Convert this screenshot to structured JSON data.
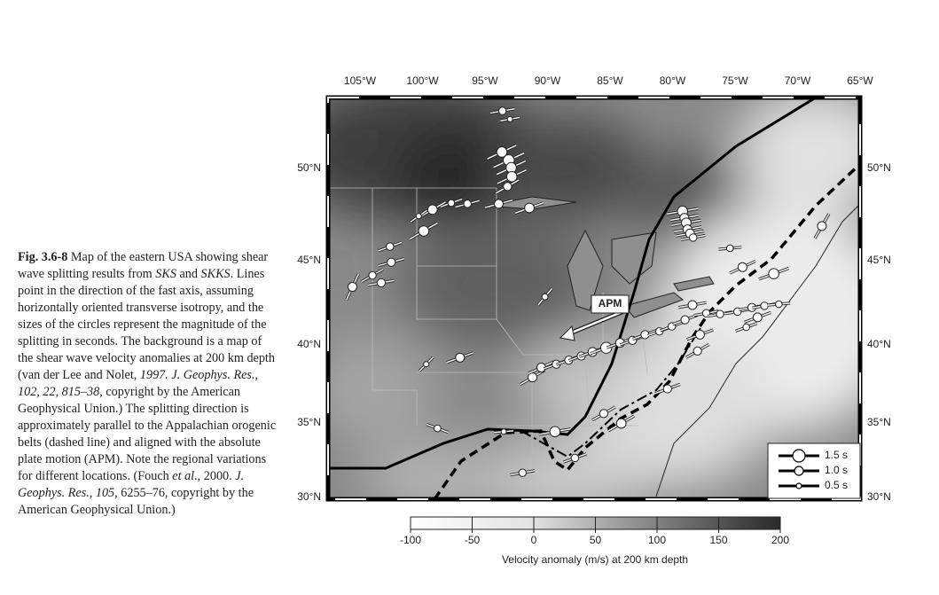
{
  "caption": {
    "label": "Fig. 3.6-8",
    "segments": [
      " Map of the eastern USA showing shear wave splitting results from ",
      "SKS",
      " and ",
      "SKKS",
      ". Lines point in the direction of the fast axis, assuming horizontally oriented transverse isotropy, and the sizes of the circles represent the magnitude of the splitting in seconds. The background is a map of the shear wave velocity anomalies at 200 km depth (van der Lee and Nolet, ",
      "1997. J. Geophys. Res., 102, 22, 815–38,",
      " copyright by the American Geophysical Union.) The splitting direction is approximately parallel to the Appalachian orogenic belts (dashed line) and aligned with the absolute plate motion (APM). Note the regional variations for different locations. (Fouch ",
      "et al",
      "., 2000. ",
      "J. Geophys. Res., 105,",
      " 6255–76, copyright by the American Geophysical Union.)"
    ]
  },
  "map": {
    "lon_labels": [
      "105°W",
      "100°W",
      "95°W",
      "90°W",
      "85°W",
      "80°W",
      "75°W",
      "70°W",
      "65°W"
    ],
    "lat_labels": [
      "50°N",
      "45°N",
      "40°N",
      "35°N",
      "30°N"
    ],
    "apm_label": "APM",
    "stations": [
      {
        "lon": -93.6,
        "lat": 53.5,
        "azimuth": 80,
        "delay": 0.8
      },
      {
        "lon": -93.0,
        "lat": 53.0,
        "azimuth": 80,
        "delay": 0.5
      },
      {
        "lon": -93.65,
        "lat": 51.0,
        "azimuth": 65,
        "delay": 1.2
      },
      {
        "lon": -93.1,
        "lat": 50.5,
        "azimuth": 65,
        "delay": 1.3
      },
      {
        "lon": -92.9,
        "lat": 50.05,
        "azimuth": 65,
        "delay": 1.2
      },
      {
        "lon": -92.85,
        "lat": 49.5,
        "azimuth": 65,
        "delay": 1.2
      },
      {
        "lon": -93.2,
        "lat": 48.9,
        "azimuth": 60,
        "delay": 0.9
      },
      {
        "lon": -93.9,
        "lat": 47.85,
        "azimuth": 75,
        "delay": 1.0
      },
      {
        "lon": -91.45,
        "lat": 47.6,
        "azimuth": 70,
        "delay": 1.1
      },
      {
        "lon": -96.4,
        "lat": 47.85,
        "azimuth": 75,
        "delay": 0.8
      },
      {
        "lon": -97.7,
        "lat": 47.9,
        "azimuth": 70,
        "delay": 0.7
      },
      {
        "lon": -99.2,
        "lat": 47.5,
        "azimuth": 60,
        "delay": 1.1
      },
      {
        "lon": -100.3,
        "lat": 47.1,
        "azimuth": 55,
        "delay": 0.5
      },
      {
        "lon": -99.9,
        "lat": 46.2,
        "azimuth": 60,
        "delay": 1.2
      },
      {
        "lon": -102.6,
        "lat": 45.25,
        "azimuth": 70,
        "delay": 0.8
      },
      {
        "lon": -102.5,
        "lat": 44.3,
        "azimuth": 75,
        "delay": 0.9
      },
      {
        "lon": -104.0,
        "lat": 43.5,
        "azimuth": 60,
        "delay": 0.8
      },
      {
        "lon": -103.3,
        "lat": 43.05,
        "azimuth": 80,
        "delay": 0.9
      },
      {
        "lon": -105.6,
        "lat": 42.8,
        "azimuth": 25,
        "delay": 1.0
      },
      {
        "lon": -99.7,
        "lat": 38.1,
        "azimuth": 45,
        "delay": 0.5
      },
      {
        "lon": -97.0,
        "lat": 38.5,
        "azimuth": 70,
        "delay": 1.0
      },
      {
        "lon": -98.8,
        "lat": 34.2,
        "azimuth": 110,
        "delay": 0.7
      },
      {
        "lon": -93.5,
        "lat": 34.0,
        "azimuth": 85,
        "delay": 0.5
      },
      {
        "lon": -92.0,
        "lat": 31.5,
        "azimuth": 80,
        "delay": 0.8
      },
      {
        "lon": -89.4,
        "lat": 34.0,
        "azimuth": 80,
        "delay": 1.2
      },
      {
        "lon": -87.8,
        "lat": 32.4,
        "azimuth": 70,
        "delay": 0.8
      },
      {
        "lon": -90.2,
        "lat": 42.2,
        "azimuth": 40,
        "delay": 0.6
      },
      {
        "lon": -91.2,
        "lat": 37.3,
        "azimuth": 60,
        "delay": 1.0
      },
      {
        "lon": -90.5,
        "lat": 37.9,
        "azimuth": 65,
        "delay": 1.0
      },
      {
        "lon": -89.3,
        "lat": 38.1,
        "azimuth": 70,
        "delay": 0.9
      },
      {
        "lon": -88.3,
        "lat": 38.35,
        "azimuth": 70,
        "delay": 0.9
      },
      {
        "lon": -87.3,
        "lat": 38.6,
        "azimuth": 70,
        "delay": 0.9
      },
      {
        "lon": -86.4,
        "lat": 38.85,
        "azimuth": 70,
        "delay": 1.0
      },
      {
        "lon": -85.3,
        "lat": 39.1,
        "azimuth": 70,
        "delay": 1.3
      },
      {
        "lon": -84.2,
        "lat": 39.4,
        "azimuth": 70,
        "delay": 1.0
      },
      {
        "lon": -83.2,
        "lat": 39.55,
        "azimuth": 70,
        "delay": 0.9
      },
      {
        "lon": -82.2,
        "lat": 39.9,
        "azimuth": 70,
        "delay": 0.9
      },
      {
        "lon": -81.05,
        "lat": 40.1,
        "azimuth": 70,
        "delay": 0.8
      },
      {
        "lon": -80.05,
        "lat": 40.4,
        "azimuth": 70,
        "delay": 0.8
      },
      {
        "lon": -79.0,
        "lat": 40.8,
        "azimuth": 70,
        "delay": 0.9
      },
      {
        "lon": -78.4,
        "lat": 41.7,
        "azimuth": 80,
        "delay": 1.0
      },
      {
        "lon": -77.8,
        "lat": 39.9,
        "azimuth": 70,
        "delay": 1.0
      },
      {
        "lon": -78.0,
        "lat": 38.9,
        "azimuth": 60,
        "delay": 0.9
      },
      {
        "lon": -77.3,
        "lat": 41.2,
        "azimuth": 80,
        "delay": 0.8
      },
      {
        "lon": -76.2,
        "lat": 41.15,
        "azimuth": 80,
        "delay": 0.8
      },
      {
        "lon": -74.8,
        "lat": 41.3,
        "azimuth": 80,
        "delay": 0.8
      },
      {
        "lon": -73.65,
        "lat": 41.55,
        "azimuth": 80,
        "delay": 0.9
      },
      {
        "lon": -72.65,
        "lat": 41.65,
        "azimuth": 80,
        "delay": 0.8
      },
      {
        "lon": -71.5,
        "lat": 41.75,
        "azimuth": 85,
        "delay": 0.7
      },
      {
        "lon": -73.2,
        "lat": 40.95,
        "azimuth": 70,
        "delay": 1.0
      },
      {
        "lon": -74.1,
        "lat": 40.35,
        "azimuth": 70,
        "delay": 0.7
      },
      {
        "lon": -80.4,
        "lat": 36.6,
        "azimuth": 70,
        "delay": 0.9
      },
      {
        "lon": -84.1,
        "lat": 34.5,
        "azimuth": 60,
        "delay": 1.1
      },
      {
        "lon": -85.5,
        "lat": 35.1,
        "azimuth": 60,
        "delay": 0.9
      },
      {
        "lon": -74.4,
        "lat": 44.0,
        "azimuth": 65,
        "delay": 1.0
      },
      {
        "lon": -71.9,
        "lat": 43.6,
        "azimuth": 70,
        "delay": 1.2
      },
      {
        "lon": -75.4,
        "lat": 45.15,
        "azimuth": 85,
        "delay": 0.7
      },
      {
        "lon": -68.05,
        "lat": 46.5,
        "azimuth": 30,
        "delay": 1.0
      },
      {
        "lon": -79.2,
        "lat": 47.4,
        "azimuth": 80,
        "delay": 1.2
      },
      {
        "lon": -79.05,
        "lat": 47.0,
        "azimuth": 80,
        "delay": 1.0
      },
      {
        "lon": -78.9,
        "lat": 46.7,
        "azimuth": 80,
        "delay": 1.1
      },
      {
        "lon": -78.8,
        "lat": 46.3,
        "azimuth": 80,
        "delay": 1.0
      },
      {
        "lon": -78.6,
        "lat": 46.05,
        "azimuth": 80,
        "delay": 1.0
      },
      {
        "lon": -78.35,
        "lat": 45.8,
        "azimuth": 80,
        "delay": 0.8
      }
    ]
  },
  "legend": {
    "items": [
      {
        "delay": 1.5,
        "label": "1.5 s"
      },
      {
        "delay": 1.0,
        "label": "1.0 s"
      },
      {
        "delay": 0.5,
        "label": "0.5 s"
      }
    ]
  },
  "colorbar": {
    "range": [
      -100,
      200
    ],
    "ticks": [
      -100,
      -50,
      0,
      50,
      100,
      150,
      200
    ],
    "label": "Velocity anomaly (m/s) at 200 km depth"
  }
}
